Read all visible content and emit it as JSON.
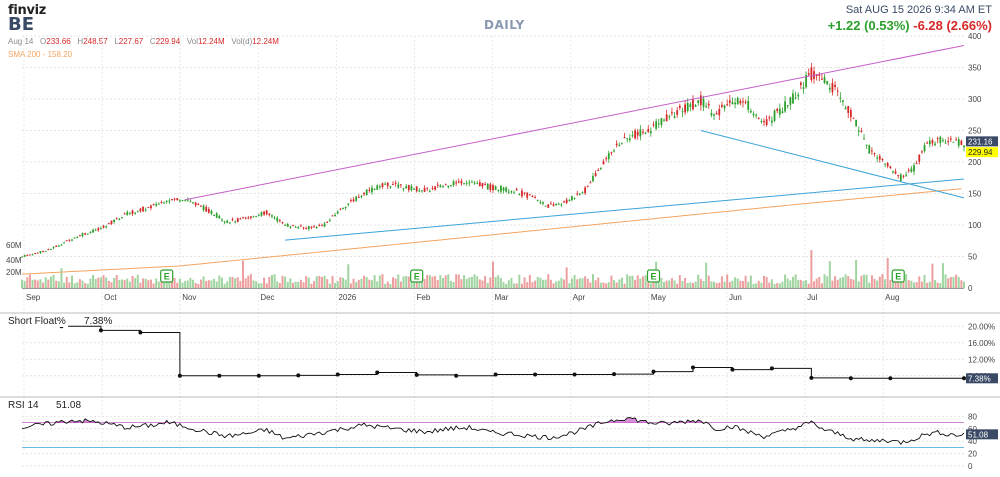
{
  "header": {
    "brand": "finviz",
    "ticker": "BE",
    "period": "DAILY",
    "datetime": "Sat AUG 15 2026 9:34 AM ET",
    "change_premarket": "+1.22 (0.53%)",
    "change_day": "-6.28 (2.66%)",
    "ohlc": {
      "date": "Aug 14",
      "open_label": "O",
      "open": "233.66",
      "high_label": "H",
      "high": "248.57",
      "low_label": "L",
      "low": "227.67",
      "close_label": "C",
      "close": "229.94",
      "vol_label": "Vol",
      "vol": "12.24M",
      "vol_d_label": "Vol(d)",
      "vol_d": "12.24M"
    },
    "sma_label": "SMA 200 - 158.20"
  },
  "colors": {
    "up": "#2ca02c",
    "down": "#d62728",
    "sma": "#f4a460",
    "trend_upper": "#c45ec9",
    "trend_lower": "#3aa3d8",
    "rsi_fill": "#c45ec9",
    "price_tag": "#3a4a66",
    "close_tag": "#ffff00"
  },
  "chart_data": [
    {
      "type": "candlestick",
      "title": "BE",
      "x_months": [
        "Sep",
        "Oct",
        "Nov",
        "Dec",
        "2026",
        "Feb",
        "Mar",
        "Apr",
        "May",
        "Jun",
        "Jul",
        "Aug"
      ],
      "y_ticks": [
        0,
        50,
        100,
        150,
        200,
        250,
        300,
        350,
        400
      ],
      "volume_ticks": [
        "20M",
        "40M",
        "60M"
      ],
      "ylim": [
        0,
        400
      ],
      "price_anchors": [
        [
          0,
          50
        ],
        [
          10,
          60
        ],
        [
          20,
          80
        ],
        [
          30,
          95
        ],
        [
          40,
          118
        ],
        [
          50,
          130
        ],
        [
          55,
          140
        ],
        [
          62,
          142
        ],
        [
          70,
          125
        ],
        [
          78,
          105
        ],
        [
          85,
          110
        ],
        [
          93,
          120
        ],
        [
          100,
          100
        ],
        [
          108,
          95
        ],
        [
          115,
          100
        ],
        [
          122,
          128
        ],
        [
          130,
          150
        ],
        [
          138,
          165
        ],
        [
          146,
          160
        ],
        [
          154,
          155
        ],
        [
          162,
          165
        ],
        [
          170,
          170
        ],
        [
          178,
          160
        ],
        [
          186,
          155
        ],
        [
          194,
          145
        ],
        [
          200,
          130
        ],
        [
          206,
          135
        ],
        [
          214,
          155
        ],
        [
          222,
          205
        ],
        [
          230,
          240
        ],
        [
          238,
          250
        ],
        [
          245,
          270
        ],
        [
          252,
          285
        ],
        [
          258,
          298
        ],
        [
          264,
          275
        ],
        [
          270,
          300
        ],
        [
          276,
          290
        ],
        [
          282,
          260
        ],
        [
          288,
          280
        ],
        [
          294,
          305
        ],
        [
          300,
          340
        ],
        [
          305,
          330
        ],
        [
          310,
          310
        ],
        [
          316,
          270
        ],
        [
          322,
          220
        ],
        [
          328,
          200
        ],
        [
          334,
          175
        ],
        [
          339,
          190
        ],
        [
          344,
          230
        ],
        [
          349,
          235
        ],
        [
          354,
          232
        ],
        [
          358,
          230
        ]
      ],
      "last_price": "231.16",
      "last_close": "229.94",
      "sma200": [
        [
          0,
          22
        ],
        [
          60,
          35
        ],
        [
          120,
          60
        ],
        [
          180,
          85
        ],
        [
          240,
          110
        ],
        [
          300,
          135
        ],
        [
          358,
          158
        ]
      ],
      "trendlines": [
        {
          "from": [
            62,
            140
          ],
          "to": [
            358,
            385
          ],
          "color": "upper"
        },
        {
          "from": [
            100,
            76
          ],
          "to": [
            358,
            173
          ],
          "color": "lower"
        },
        {
          "from": [
            258,
            250
          ],
          "to": [
            358,
            143
          ],
          "color": "lower"
        }
      ],
      "earnings_markers": [
        55,
        150,
        240,
        333
      ]
    },
    {
      "type": "step",
      "title": "Short Float%",
      "value": "7.38%",
      "y_ticks": [
        "20.00%",
        "16.00%",
        "12.00%",
        "8.00%"
      ],
      "ylim": [
        6,
        22
      ],
      "points": [
        [
          0,
          21
        ],
        [
          15,
          20
        ],
        [
          30,
          19
        ],
        [
          45,
          18.5
        ],
        [
          60,
          8
        ],
        [
          75,
          8
        ],
        [
          90,
          8
        ],
        [
          105,
          8.1
        ],
        [
          120,
          8.3
        ],
        [
          135,
          8.8
        ],
        [
          150,
          8.2
        ],
        [
          165,
          8
        ],
        [
          180,
          8.3
        ],
        [
          195,
          8.3
        ],
        [
          210,
          8.3
        ],
        [
          225,
          8.4
        ],
        [
          240,
          9
        ],
        [
          255,
          10
        ],
        [
          270,
          9.5
        ],
        [
          285,
          9.8
        ],
        [
          300,
          7.5
        ],
        [
          315,
          7.4
        ],
        [
          330,
          7.38
        ],
        [
          358,
          7.38
        ]
      ]
    },
    {
      "type": "line",
      "title": "RSI 14",
      "value": "51.08",
      "y_ticks": [
        0,
        20,
        40,
        60,
        80
      ],
      "ylim": [
        0,
        100
      ],
      "overbought": 70,
      "oversold": 30,
      "points": [
        [
          0,
          62
        ],
        [
          10,
          68
        ],
        [
          20,
          74
        ],
        [
          30,
          70
        ],
        [
          40,
          62
        ],
        [
          50,
          66
        ],
        [
          55,
          70
        ],
        [
          62,
          64
        ],
        [
          70,
          55
        ],
        [
          78,
          48
        ],
        [
          85,
          52
        ],
        [
          93,
          58
        ],
        [
          100,
          44
        ],
        [
          108,
          50
        ],
        [
          115,
          55
        ],
        [
          122,
          60
        ],
        [
          130,
          66
        ],
        [
          138,
          62
        ],
        [
          146,
          58
        ],
        [
          154,
          55
        ],
        [
          162,
          60
        ],
        [
          170,
          62
        ],
        [
          178,
          54
        ],
        [
          186,
          52
        ],
        [
          194,
          48
        ],
        [
          200,
          46
        ],
        [
          206,
          50
        ],
        [
          214,
          60
        ],
        [
          222,
          72
        ],
        [
          230,
          78
        ],
        [
          238,
          70
        ],
        [
          245,
          68
        ],
        [
          252,
          72
        ],
        [
          258,
          74
        ],
        [
          264,
          60
        ],
        [
          270,
          64
        ],
        [
          276,
          55
        ],
        [
          282,
          48
        ],
        [
          288,
          54
        ],
        [
          294,
          62
        ],
        [
          300,
          70
        ],
        [
          305,
          58
        ],
        [
          310,
          52
        ],
        [
          316,
          44
        ],
        [
          322,
          40
        ],
        [
          328,
          42
        ],
        [
          334,
          38
        ],
        [
          339,
          44
        ],
        [
          344,
          52
        ],
        [
          349,
          54
        ],
        [
          354,
          50
        ],
        [
          358,
          51
        ]
      ]
    }
  ]
}
